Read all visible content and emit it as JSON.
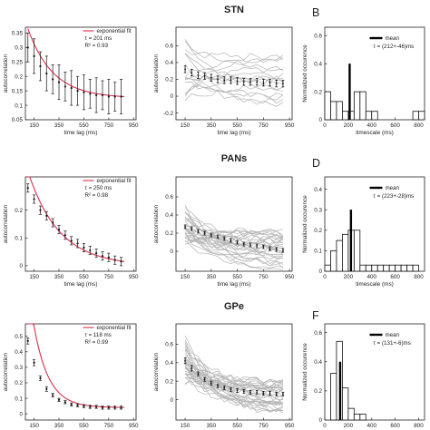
{
  "chart_data": [
    {
      "id": "A",
      "type": "line",
      "xlabel": "time lag (ms)",
      "ylabel": "autocorrelation",
      "xlim": [
        80,
        970
      ],
      "ylim": [
        0.05,
        0.37
      ],
      "xticks": [
        150,
        350,
        550,
        750,
        950
      ],
      "yticks": [
        0.05,
        0.1,
        0.15,
        0.2,
        0.25,
        0.3,
        0.35
      ],
      "ytick_labels": [
        "0.05",
        "0.1",
        "0.15",
        "0.2",
        "0.25",
        "0.3",
        "0.35"
      ],
      "legend": [
        "exponential fit",
        "τ = 201 ms",
        "R² = 0.93"
      ],
      "fit": {
        "a": 0.24,
        "tau": 201,
        "c": 0.125
      },
      "x": [
        100,
        150,
        200,
        250,
        300,
        350,
        400,
        450,
        500,
        550,
        600,
        650,
        700,
        750,
        800,
        850
      ],
      "y": [
        0.3,
        0.27,
        0.235,
        0.21,
        0.19,
        0.18,
        0.165,
        0.16,
        0.15,
        0.145,
        0.14,
        0.135,
        0.135,
        0.13,
        0.13,
        0.13
      ],
      "err": [
        0.05,
        0.06,
        0.05,
        0.06,
        0.05,
        0.06,
        0.05,
        0.06,
        0.05,
        0.06,
        0.05,
        0.06,
        0.05,
        0.06,
        0.05,
        0.06
      ]
    },
    {
      "id": "STN-traces",
      "type": "line",
      "title": "STN",
      "xlabel": "time lag (ms)",
      "ylabel": "autocorrelation",
      "xlim": [
        80,
        970
      ],
      "ylim": [
        -0.28,
        0.82
      ],
      "xticks": [
        150,
        350,
        550,
        750,
        950
      ],
      "xtick_labels": [
        "150",
        "350",
        "550",
        "750",
        "950"
      ],
      "yticks": [
        -0.2,
        0,
        0.2,
        0.4,
        0.6
      ],
      "ytick_labels": [
        "-0.2",
        "0",
        "0.2",
        "0.4",
        "0.6"
      ],
      "x": [
        150,
        200,
        250,
        300,
        350,
        400,
        450,
        500,
        550,
        600,
        650,
        700,
        750,
        800,
        850,
        900
      ],
      "mean": [
        0.32,
        0.28,
        0.25,
        0.24,
        0.22,
        0.2,
        0.19,
        0.19,
        0.18,
        0.17,
        0.17,
        0.17,
        0.16,
        0.16,
        0.15,
        0.15
      ],
      "err": [
        0.04,
        0.04,
        0.04,
        0.04,
        0.04,
        0.04,
        0.04,
        0.04,
        0.04,
        0.04,
        0.04,
        0.04,
        0.04,
        0.04,
        0.04,
        0.04
      ],
      "n_traces": 16,
      "trace_start_range": [
        -0.05,
        0.72
      ],
      "trace_end_range": [
        -0.1,
        0.55
      ]
    },
    {
      "id": "B",
      "type": "bar",
      "xlabel": "timescale (ms)",
      "ylabel": "Normalized occurence",
      "xlim": [
        0,
        850
      ],
      "ylim": [
        0,
        0.66
      ],
      "xticks": [
        0,
        200,
        400,
        600,
        800
      ],
      "yticks": [
        0,
        0.2,
        0.4,
        0.6
      ],
      "ytick_labels": [
        "0",
        "0.2",
        "0.4",
        "0.6"
      ],
      "legend": [
        "mean",
        "τ = (212+-46)ms"
      ],
      "bin_width": 50,
      "bins": [
        0,
        50,
        100,
        150,
        200,
        250,
        300,
        350,
        400,
        750,
        800
      ],
      "values": [
        0.2,
        0.13,
        0.13,
        0.06,
        0.06,
        0.2,
        0.2,
        0.06,
        0.06,
        0.06,
        0.06
      ],
      "mean": 212,
      "mean_height": 0.4
    },
    {
      "id": "C",
      "type": "line",
      "xlabel": "time lag (ms)",
      "ylabel": "autocorrelation",
      "xlim": [
        80,
        970
      ],
      "ylim": [
        -0.02,
        0.32
      ],
      "xticks": [
        150,
        350,
        550,
        750,
        950
      ],
      "yticks": [
        0,
        0.1,
        0.2
      ],
      "ytick_labels": [
        "0",
        "0.1",
        "0.2"
      ],
      "legend": [
        "exponential fit",
        "τ = 250 ms",
        "R² = 0.98"
      ],
      "fit": {
        "a": 0.34,
        "tau": 250,
        "c": 0.0
      },
      "x": [
        100,
        150,
        200,
        250,
        300,
        350,
        400,
        450,
        500,
        550,
        600,
        650,
        700,
        750,
        800,
        850
      ],
      "y": [
        0.28,
        0.24,
        0.2,
        0.18,
        0.155,
        0.13,
        0.11,
        0.09,
        0.08,
        0.065,
        0.055,
        0.045,
        0.035,
        0.03,
        0.02,
        0.015
      ],
      "err": [
        0.015,
        0.015,
        0.015,
        0.015,
        0.015,
        0.015,
        0.015,
        0.015,
        0.015,
        0.015,
        0.015,
        0.015,
        0.015,
        0.015,
        0.015,
        0.015
      ]
    },
    {
      "id": "PANs-traces",
      "type": "line",
      "title": "PANs",
      "xlabel": "time lag (ms)",
      "ylabel": "autocorrelation",
      "xlim": [
        80,
        970
      ],
      "ylim": [
        -0.22,
        0.82
      ],
      "xticks": [
        150,
        350,
        550,
        750,
        950
      ],
      "xtick_labels": [
        "150",
        "350",
        "550",
        "750",
        "950"
      ],
      "yticks": [
        0,
        0.2,
        0.4,
        0.6
      ],
      "ytick_labels": [
        "0",
        "0.2",
        "0.4",
        "0.6"
      ],
      "x": [
        150,
        200,
        250,
        300,
        350,
        400,
        450,
        500,
        550,
        600,
        650,
        700,
        750,
        800,
        850,
        900
      ],
      "mean": [
        0.27,
        0.25,
        0.22,
        0.2,
        0.18,
        0.16,
        0.14,
        0.12,
        0.1,
        0.08,
        0.07,
        0.06,
        0.05,
        0.03,
        0.02,
        0.01
      ],
      "err": [
        0.02,
        0.02,
        0.02,
        0.02,
        0.02,
        0.02,
        0.02,
        0.02,
        0.02,
        0.02,
        0.02,
        0.02,
        0.02,
        0.02,
        0.02,
        0.02
      ],
      "n_traces": 30,
      "trace_start_range": [
        0.1,
        0.5
      ],
      "trace_end_range": [
        -0.18,
        0.22
      ]
    },
    {
      "id": "D",
      "type": "bar",
      "xlabel": "timescale (ms)",
      "ylabel": "Normalized occurence",
      "xlim": [
        0,
        850
      ],
      "ylim": [
        0,
        0.46
      ],
      "xticks": [
        0,
        200,
        400,
        600,
        800
      ],
      "yticks": [
        0,
        0.1,
        0.2,
        0.3,
        0.4
      ],
      "ytick_labels": [
        "0",
        "0.1",
        "0.2",
        "0.3",
        "0.4"
      ],
      "legend": [
        "mean",
        "τ = (223+-28)ms"
      ],
      "bin_width": 50,
      "bins": [
        0,
        50,
        100,
        150,
        200,
        250,
        300,
        350,
        400,
        450,
        500,
        550,
        600,
        650,
        700,
        750
      ],
      "values": [
        0.03,
        0.1,
        0.15,
        0.18,
        0.2,
        0.2,
        0.03,
        0.03,
        0.03,
        0.03,
        0.03,
        0.03,
        0.03,
        0.03,
        0.03,
        0.03
      ],
      "mean": 223,
      "mean_height": 0.3
    },
    {
      "id": "E",
      "type": "line",
      "xlabel": "time lag (ms)",
      "ylabel": "autocorrelation",
      "xlim": [
        80,
        970
      ],
      "ylim": [
        -0.04,
        0.58
      ],
      "xticks": [
        150,
        350,
        550,
        750,
        950
      ],
      "yticks": [
        0,
        0.1,
        0.2,
        0.3,
        0.4,
        0.5
      ],
      "ytick_labels": [
        "0",
        "0.1",
        "0.2",
        "0.3",
        "0.4",
        "0.5"
      ],
      "legend": [
        "exponential fit",
        "τ = 118 ms",
        "R² = 0.99"
      ],
      "fit": {
        "a": 0.8,
        "tau": 118,
        "c": 0.04
      },
      "x": [
        100,
        150,
        200,
        250,
        300,
        350,
        400,
        450,
        500,
        550,
        600,
        650,
        700,
        750,
        800,
        850
      ],
      "y": [
        0.47,
        0.33,
        0.23,
        0.16,
        0.12,
        0.09,
        0.075,
        0.06,
        0.055,
        0.05,
        0.045,
        0.045,
        0.04,
        0.04,
        0.04,
        0.04
      ],
      "err": [
        0.02,
        0.02,
        0.015,
        0.015,
        0.012,
        0.01,
        0.01,
        0.01,
        0.01,
        0.01,
        0.01,
        0.01,
        0.01,
        0.01,
        0.01,
        0.01
      ]
    },
    {
      "id": "GPe-traces",
      "type": "line",
      "title": "GPe",
      "xlabel": "time lag (ms)",
      "ylabel": "autocorrelation",
      "xlim": [
        80,
        970
      ],
      "ylim": [
        -0.22,
        0.82
      ],
      "xticks": [
        150,
        350,
        550,
        750,
        950
      ],
      "xtick_labels": [
        "150",
        "350",
        "550",
        "750",
        "950"
      ],
      "yticks": [
        0,
        0.2,
        0.4,
        0.6
      ],
      "ytick_labels": [
        "0",
        "0.2",
        "0.4",
        "0.6"
      ],
      "x": [
        150,
        200,
        250,
        300,
        350,
        400,
        450,
        500,
        550,
        600,
        650,
        700,
        750,
        800,
        850,
        900
      ],
      "mean": [
        0.42,
        0.34,
        0.28,
        0.22,
        0.18,
        0.15,
        0.13,
        0.11,
        0.1,
        0.09,
        0.08,
        0.08,
        0.07,
        0.07,
        0.06,
        0.06
      ],
      "err": [
        0.03,
        0.03,
        0.02,
        0.02,
        0.02,
        0.02,
        0.02,
        0.02,
        0.02,
        0.02,
        0.02,
        0.02,
        0.02,
        0.02,
        0.02,
        0.02
      ],
      "n_traces": 34,
      "trace_start_range": [
        0.2,
        0.72
      ],
      "trace_end_range": [
        -0.18,
        0.2
      ]
    },
    {
      "id": "F",
      "type": "bar",
      "xlabel": "timescale (ms)",
      "ylabel": "Normalized occurence",
      "xlim": [
        0,
        850
      ],
      "ylim": [
        0,
        0.66
      ],
      "xticks": [
        0,
        200,
        400,
        600,
        800
      ],
      "yticks": [
        0,
        0.2,
        0.4,
        0.6
      ],
      "ytick_labels": [
        "0",
        "0.2",
        "0.4",
        "0.6"
      ],
      "legend": [
        "mean",
        "τ = (131+-6)ms"
      ],
      "bin_width": 50,
      "bins": [
        50,
        100,
        150,
        200,
        250,
        300
      ],
      "values": [
        0.32,
        0.54,
        0.22,
        0.08,
        0.04,
        0.04
      ],
      "mean": 131,
      "mean_height": 0.4
    }
  ],
  "panel_labels": [
    "B",
    "D",
    "F"
  ],
  "colors": {
    "fit": "#d9304f",
    "traces": "#b4b4b4",
    "mean_bar": "#000000",
    "axes": "#222222"
  }
}
